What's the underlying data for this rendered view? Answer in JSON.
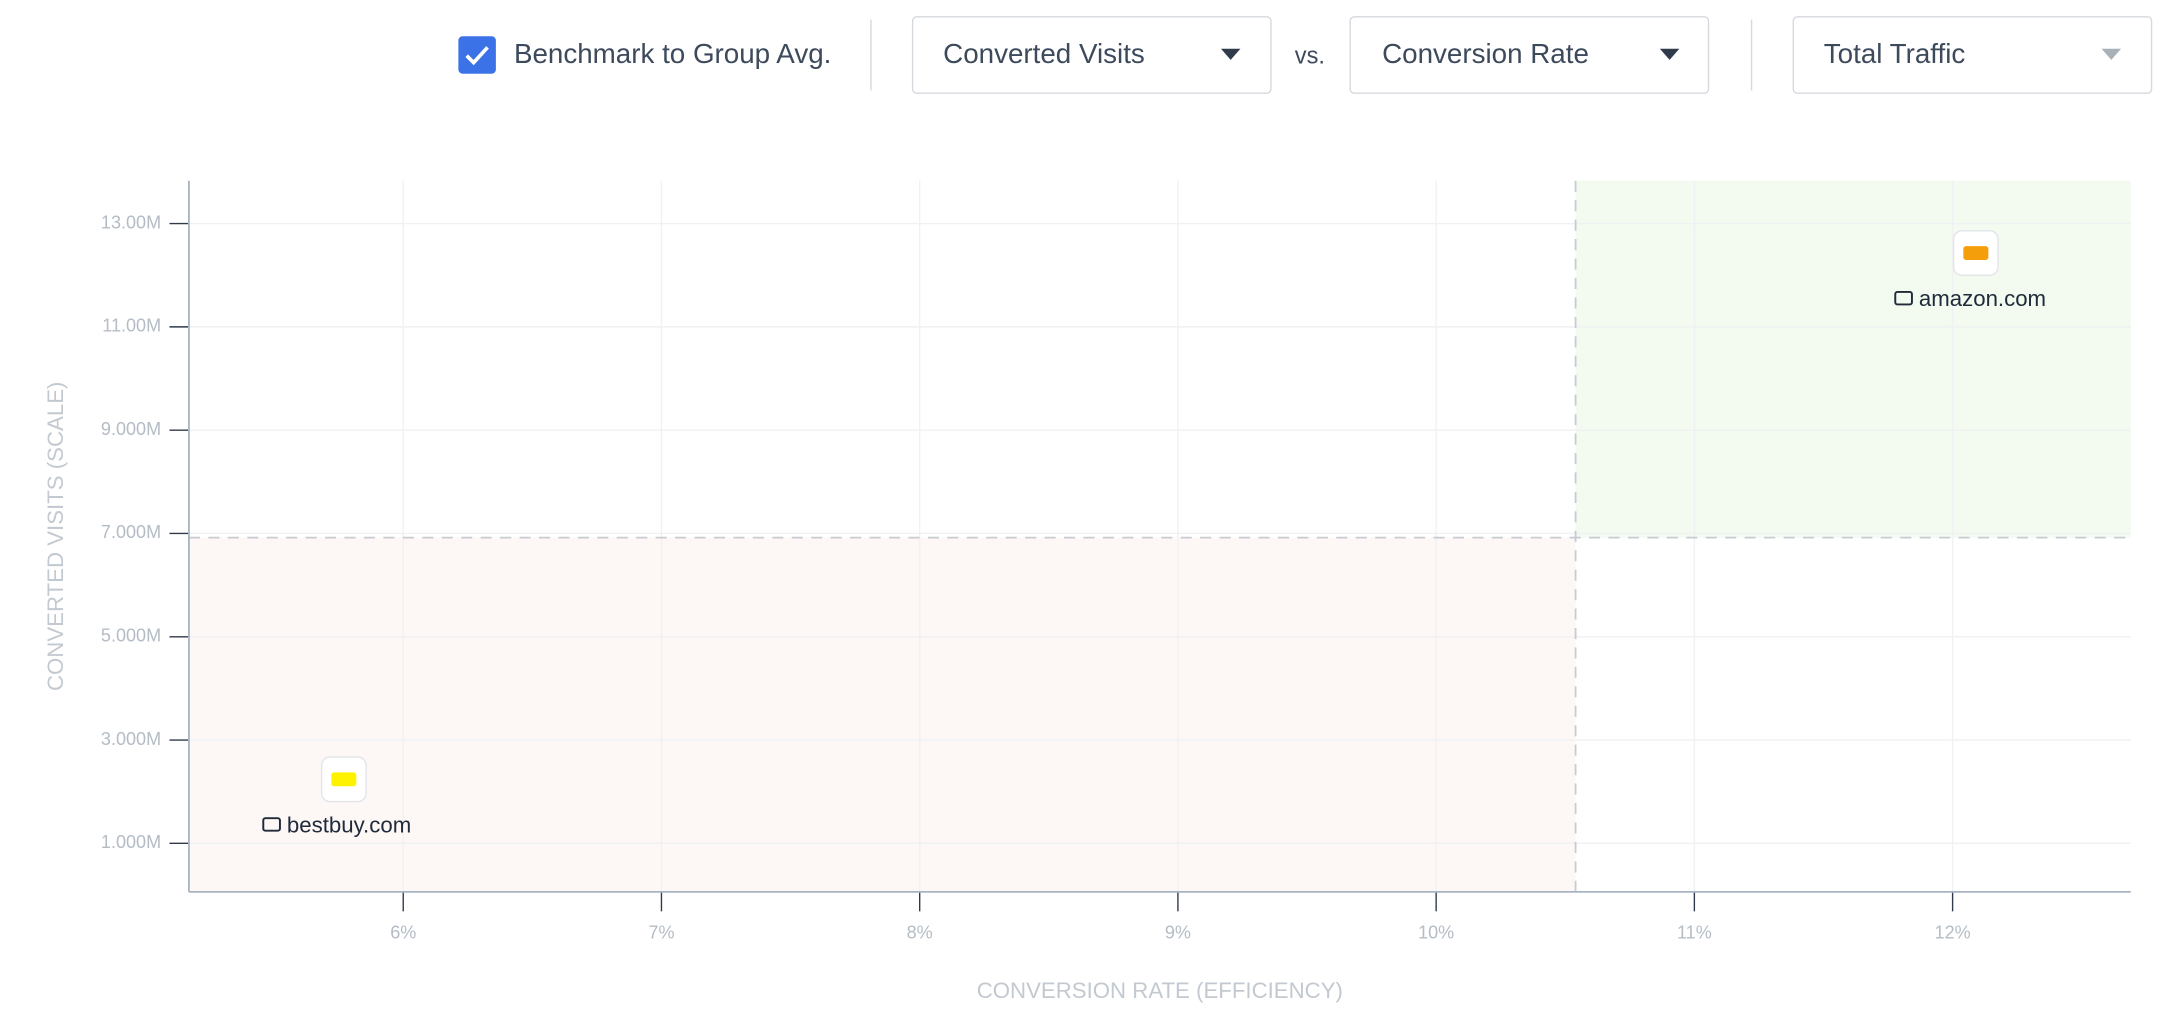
{
  "controls": {
    "benchmark_checkbox": "Benchmark to Group Avg.",
    "y_metric": "Converted Visits",
    "vs": "vs.",
    "x_metric": "Conversion Rate",
    "size_metric": "Total Traffic"
  },
  "chart_data": {
    "type": "scatter",
    "x_label": "CONVERSION RATE (EFFICIENCY)",
    "y_label": "CONVERTED VISITS (SCALE)",
    "xlim": [
      5.17,
      12.69
    ],
    "xticks": [
      {
        "value": 6,
        "label": "6%"
      },
      {
        "value": 7,
        "label": "7%"
      },
      {
        "value": 8,
        "label": "8%"
      },
      {
        "value": 9,
        "label": "9%"
      },
      {
        "value": 10,
        "label": "10%"
      },
      {
        "value": 11,
        "label": "11%"
      },
      {
        "value": 12,
        "label": "12%"
      }
    ],
    "ylim": [
      60000,
      13830000
    ],
    "yticks": [
      {
        "value": 1000000,
        "label": "1.000M"
      },
      {
        "value": 3000000,
        "label": "3.000M"
      },
      {
        "value": 5000000,
        "label": "5.000M"
      },
      {
        "value": 7000000,
        "label": "7.000M"
      },
      {
        "value": 9000000,
        "label": "9.000M"
      },
      {
        "value": 11000000,
        "label": "11.00M"
      },
      {
        "value": 13000000,
        "label": "13.00M"
      }
    ],
    "grid": true,
    "benchmark": {
      "x": 10.54,
      "y": 6920000
    },
    "series": [
      {
        "name": "amazon.com",
        "color": "#f59e0b",
        "x": [
          12.09
        ],
        "values": [
          12430000
        ]
      },
      {
        "name": "bestbuy.com",
        "color": "#fff200",
        "x": [
          5.77
        ],
        "values": [
          2240000
        ]
      }
    ]
  }
}
